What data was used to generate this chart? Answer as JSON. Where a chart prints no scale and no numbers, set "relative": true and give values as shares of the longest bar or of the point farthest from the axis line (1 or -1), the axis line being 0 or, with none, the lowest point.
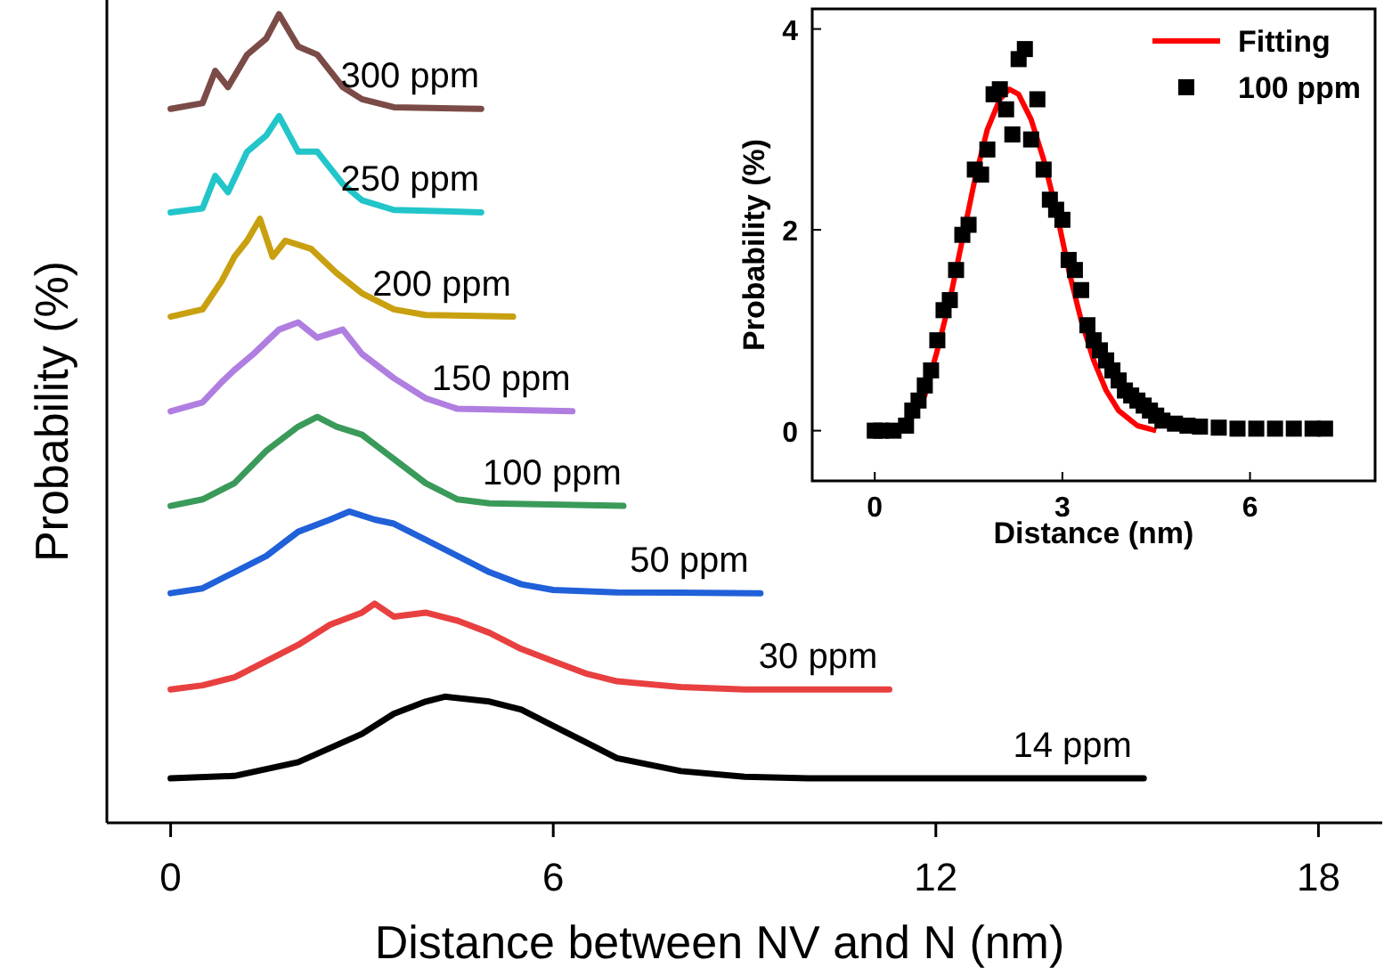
{
  "chart_data": [
    {
      "type": "line",
      "xlabel": "Distance between NV and N (nm)",
      "ylabel": "Probability (%)",
      "relative": true,
      "xlim": [
        -1,
        19
      ],
      "xticks": [
        0,
        6,
        12,
        18
      ],
      "grid": false,
      "series": [
        {
          "name": "300 ppm",
          "color": "#7b4b47",
          "x": [
            0,
            0.5,
            0.7,
            0.9,
            1.2,
            1.5,
            1.7,
            2,
            2.3,
            2.7,
            3,
            3.5,
            4.87
          ],
          "values": [
            0.883,
            0.89,
            0.93,
            0.91,
            0.95,
            0.97,
            1,
            0.96,
            0.95,
            0.91,
            0.895,
            0.885,
            0.883
          ]
        },
        {
          "name": "250 ppm",
          "color": "#22c5c9",
          "x": [
            0,
            0.5,
            0.7,
            0.9,
            1.2,
            1.5,
            1.7,
            2,
            2.3,
            2.7,
            3,
            3.5,
            4.87
          ],
          "values": [
            0.755,
            0.76,
            0.8,
            0.78,
            0.83,
            0.85,
            0.874,
            0.83,
            0.83,
            0.79,
            0.77,
            0.758,
            0.755
          ]
        },
        {
          "name": "200 ppm",
          "color": "#c8a010",
          "x": [
            0,
            0.5,
            0.8,
            1,
            1.2,
            1.4,
            1.6,
            1.8,
            2.2,
            2.6,
            3,
            3.5,
            4,
            5.37
          ],
          "values": [
            0.626,
            0.635,
            0.67,
            0.7,
            0.72,
            0.747,
            0.7,
            0.72,
            0.71,
            0.68,
            0.655,
            0.635,
            0.628,
            0.626
          ]
        },
        {
          "name": "150 ppm",
          "color": "#b07ee0",
          "x": [
            0,
            0.5,
            0.8,
            1,
            1.3,
            1.7,
            2,
            2.3,
            2.7,
            3,
            3.5,
            4,
            4.5,
            6.3
          ],
          "values": [
            0.509,
            0.52,
            0.545,
            0.56,
            0.58,
            0.61,
            0.619,
            0.6,
            0.61,
            0.58,
            0.55,
            0.525,
            0.512,
            0.509
          ]
        },
        {
          "name": "100 ppm",
          "color": "#3a9a5a",
          "x": [
            0,
            0.5,
            1,
            1.5,
            2,
            2.3,
            2.6,
            3,
            3.5,
            4,
            4.5,
            5,
            7.1
          ],
          "values": [
            0.392,
            0.4,
            0.42,
            0.46,
            0.49,
            0.502,
            0.49,
            0.48,
            0.45,
            0.42,
            0.4,
            0.395,
            0.392
          ]
        },
        {
          "name": "50 ppm",
          "color": "#2060d8",
          "x": [
            0,
            0.5,
            1,
            1.5,
            2,
            2.5,
            2.8,
            3.2,
            3.5,
            4,
            4.5,
            5,
            5.5,
            6,
            7,
            9.25
          ],
          "values": [
            0.284,
            0.29,
            0.31,
            0.33,
            0.36,
            0.375,
            0.385,
            0.375,
            0.37,
            0.35,
            0.33,
            0.31,
            0.295,
            0.288,
            0.285,
            0.284
          ]
        },
        {
          "name": "30 ppm",
          "color": "#e84040",
          "x": [
            0,
            0.5,
            1,
            1.5,
            2,
            2.5,
            3,
            3.2,
            3.5,
            4,
            4.5,
            5,
            5.5,
            6,
            6.5,
            7,
            8,
            9,
            11.27
          ],
          "values": [
            0.165,
            0.17,
            0.18,
            0.2,
            0.22,
            0.245,
            0.26,
            0.271,
            0.255,
            0.26,
            0.25,
            0.235,
            0.215,
            0.2,
            0.185,
            0.175,
            0.168,
            0.165,
            0.165
          ]
        },
        {
          "name": "14 ppm",
          "color": "#000000",
          "x": [
            0,
            1,
            2,
            3,
            3.5,
            4,
            4.3,
            5,
            5.5,
            6,
            6.5,
            7,
            8,
            9,
            10,
            12,
            15.26
          ],
          "values": [
            0.055,
            0.058,
            0.075,
            0.11,
            0.135,
            0.15,
            0.156,
            0.15,
            0.14,
            0.12,
            0.1,
            0.08,
            0.064,
            0.057,
            0.055,
            0.055,
            0.055
          ]
        }
      ]
    },
    {
      "type": "scatter",
      "xlabel": "Distance (nm)",
      "ylabel": "Probability (%)",
      "xlim": [
        -1,
        8
      ],
      "xticks": [
        0,
        3,
        6
      ],
      "ylim": [
        -0.5,
        4.2
      ],
      "yticks": [
        0,
        2,
        4
      ],
      "legend": "top right",
      "grid": false,
      "series": [
        {
          "name": "Fitting",
          "type": "line",
          "color": "#ff0000",
          "x": [
            0.5,
            0.8,
            1,
            1.2,
            1.4,
            1.6,
            1.8,
            2,
            2.15,
            2.3,
            2.5,
            2.7,
            2.9,
            3.1,
            3.3,
            3.5,
            3.7,
            3.9,
            4.2,
            4.5
          ],
          "values": [
            0.1,
            0.35,
            0.8,
            1.3,
            1.9,
            2.5,
            3,
            3.3,
            3.4,
            3.35,
            3.1,
            2.7,
            2.2,
            1.6,
            1.1,
            0.7,
            0.4,
            0.2,
            0.05,
            0
          ]
        },
        {
          "name": "100 ppm",
          "marker": "square",
          "color": "#000000",
          "x": [
            0,
            0.1,
            0.3,
            0.5,
            0.6,
            0.7,
            0.8,
            0.9,
            1,
            1.1,
            1.2,
            1.3,
            1.4,
            1.5,
            1.6,
            1.7,
            1.8,
            1.9,
            2,
            2.1,
            2.2,
            2.3,
            2.4,
            2.5,
            2.6,
            2.7,
            2.8,
            2.9,
            3,
            3.1,
            3.2,
            3.3,
            3.4,
            3.5,
            3.6,
            3.7,
            3.8,
            3.9,
            4,
            4.1,
            4.2,
            4.3,
            4.4,
            4.5,
            4.6,
            4.8,
            5,
            5.2,
            5.5,
            5.8,
            6.1,
            6.4,
            6.7,
            7,
            7.2
          ],
          "values": [
            0,
            0,
            0,
            0.05,
            0.2,
            0.3,
            0.45,
            0.6,
            0.9,
            1.2,
            1.3,
            1.6,
            1.95,
            2.05,
            2.6,
            2.55,
            2.8,
            3.35,
            3.4,
            3.2,
            2.95,
            3.7,
            3.8,
            2.9,
            3.3,
            2.6,
            2.3,
            2.2,
            2.1,
            1.7,
            1.6,
            1.4,
            1.05,
            0.9,
            0.8,
            0.7,
            0.6,
            0.5,
            0.4,
            0.35,
            0.3,
            0.25,
            0.2,
            0.15,
            0.1,
            0.07,
            0.05,
            0.04,
            0.03,
            0.02,
            0.02,
            0.02,
            0.02,
            0.02,
            0.02
          ]
        }
      ]
    }
  ]
}
